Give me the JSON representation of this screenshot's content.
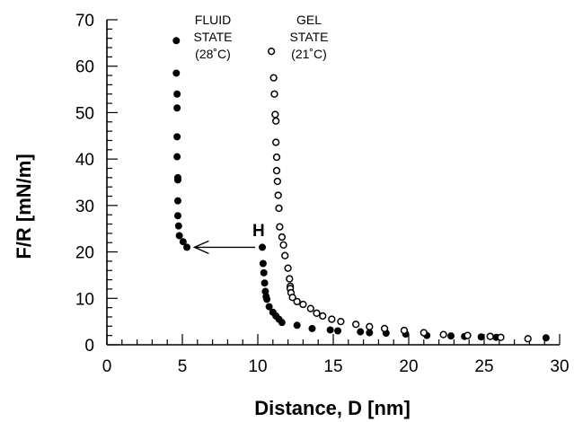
{
  "chart_data": {
    "type": "scatter",
    "xlabel": "Distance, D [nm]",
    "ylabel": "F/R [mN/m]",
    "xlim": [
      0,
      30
    ],
    "ylim": [
      0,
      70
    ],
    "xticks": [
      "0",
      "5",
      "10",
      "15",
      "20",
      "25",
      "30"
    ],
    "yticks": [
      "0",
      "10",
      "20",
      "30",
      "40",
      "50",
      "60",
      "70"
    ],
    "grid": false,
    "annotations": {
      "fluid": [
        "FLUID",
        "STATE",
        "(28˚C)"
      ],
      "gel": [
        "GEL",
        "STATE",
        "(21˚C)"
      ],
      "jump_label": "H"
    },
    "jump_arrow": {
      "from": [
        10.3,
        21
      ],
      "to": [
        5.8,
        21
      ]
    },
    "series": [
      {
        "marker": "filled-circle",
        "color": "#000000",
        "points": [
          [
            4.6,
            65.5
          ],
          [
            4.6,
            58.5
          ],
          [
            4.65,
            54
          ],
          [
            4.65,
            51
          ],
          [
            4.65,
            44.8
          ],
          [
            4.65,
            40.5
          ],
          [
            4.7,
            36
          ],
          [
            4.7,
            35.5
          ],
          [
            4.7,
            31
          ],
          [
            4.7,
            27.8
          ],
          [
            4.75,
            25.6
          ],
          [
            4.8,
            23.5
          ],
          [
            5.05,
            22.2
          ],
          [
            5.3,
            21
          ],
          [
            10.3,
            21
          ],
          [
            10.35,
            17.5
          ],
          [
            10.4,
            15.5
          ],
          [
            10.45,
            13.3
          ],
          [
            10.5,
            11.5
          ],
          [
            10.55,
            10.4
          ],
          [
            10.6,
            9.8
          ],
          [
            10.75,
            8.2
          ],
          [
            11.0,
            7.0
          ],
          [
            11.2,
            6.2
          ],
          [
            11.4,
            5.5
          ],
          [
            11.6,
            4.8
          ],
          [
            12.6,
            4.2
          ],
          [
            13.6,
            3.5
          ],
          [
            14.8,
            3.2
          ],
          [
            15.3,
            3.0
          ],
          [
            16.8,
            2.8
          ],
          [
            17.4,
            2.6
          ],
          [
            18.5,
            2.5
          ],
          [
            19.8,
            2.3
          ],
          [
            21.2,
            2.0
          ],
          [
            22.8,
            1.9
          ],
          [
            23.7,
            1.8
          ],
          [
            24.8,
            1.7
          ],
          [
            25.8,
            1.6
          ],
          [
            29.1,
            1.5
          ]
        ]
      },
      {
        "marker": "open-circle",
        "color": "#000000",
        "points": [
          [
            10.9,
            63.2
          ],
          [
            11.05,
            57.5
          ],
          [
            11.1,
            54
          ],
          [
            11.15,
            49.6
          ],
          [
            11.2,
            48.2
          ],
          [
            11.2,
            43.6
          ],
          [
            11.25,
            40.4
          ],
          [
            11.25,
            37.5
          ],
          [
            11.3,
            35.2
          ],
          [
            11.35,
            32.2
          ],
          [
            11.4,
            29.4
          ],
          [
            11.45,
            25.4
          ],
          [
            11.6,
            23.2
          ],
          [
            11.7,
            21.5
          ],
          [
            11.8,
            19.2
          ],
          [
            12.0,
            16.5
          ],
          [
            12.1,
            14.2
          ],
          [
            12.15,
            12.6
          ],
          [
            12.15,
            12.1
          ],
          [
            12.2,
            11.2
          ],
          [
            12.3,
            10.2
          ],
          [
            12.6,
            9.3
          ],
          [
            13.0,
            8.7
          ],
          [
            13.5,
            7.8
          ],
          [
            13.9,
            6.8
          ],
          [
            14.3,
            6.2
          ],
          [
            14.9,
            5.5
          ],
          [
            15.5,
            5.0
          ],
          [
            16.5,
            4.4
          ],
          [
            17.4,
            3.9
          ],
          [
            18.4,
            3.5
          ],
          [
            19.7,
            3.1
          ],
          [
            21.0,
            2.6
          ],
          [
            22.3,
            2.2
          ],
          [
            23.9,
            2.0
          ],
          [
            25.4,
            1.8
          ],
          [
            26.1,
            1.6
          ],
          [
            27.9,
            1.3
          ]
        ]
      }
    ]
  }
}
